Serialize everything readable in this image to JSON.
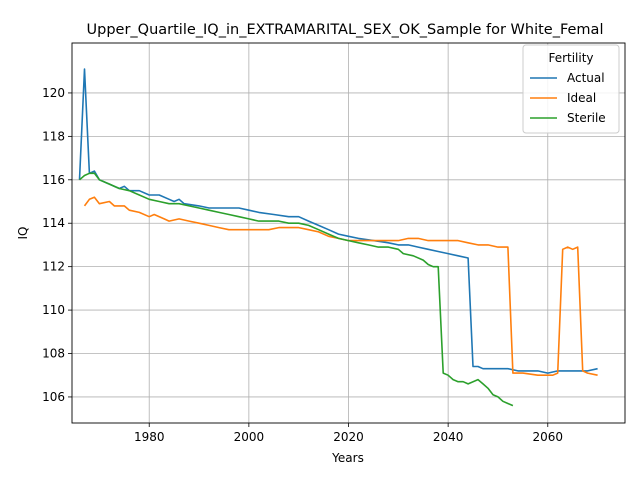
{
  "chart_data": {
    "type": "line",
    "title": "Upper_Quartile_IQ_in_EXTRAMARITAL_SEX_OK_Sample for White_Femal",
    "xlabel": "Years",
    "ylabel": "IQ",
    "xlim": [
      1964.5,
      2075.5
    ],
    "ylim": [
      104.8,
      122.3
    ],
    "xticks": [
      1980,
      2000,
      2020,
      2040,
      2060
    ],
    "yticks": [
      106,
      108,
      110,
      112,
      114,
      116,
      118,
      120
    ],
    "grid": true,
    "legend": {
      "title": "Fertility",
      "placement": "top-right"
    },
    "series": [
      {
        "name": "Actual",
        "color": "#1f77b4",
        "points": [
          [
            1966,
            116.0
          ],
          [
            1967,
            121.1
          ],
          [
            1968,
            116.3
          ],
          [
            1969,
            116.4
          ],
          [
            1970,
            116.0
          ],
          [
            1972,
            115.8
          ],
          [
            1974,
            115.6
          ],
          [
            1975,
            115.7
          ],
          [
            1976,
            115.5
          ],
          [
            1978,
            115.5
          ],
          [
            1980,
            115.3
          ],
          [
            1982,
            115.3
          ],
          [
            1984,
            115.1
          ],
          [
            1985,
            115.0
          ],
          [
            1986,
            115.1
          ],
          [
            1987,
            114.9
          ],
          [
            1990,
            114.8
          ],
          [
            1992,
            114.7
          ],
          [
            1995,
            114.7
          ],
          [
            1998,
            114.7
          ],
          [
            2000,
            114.6
          ],
          [
            2002,
            114.5
          ],
          [
            2005,
            114.4
          ],
          [
            2008,
            114.3
          ],
          [
            2010,
            114.3
          ],
          [
            2012,
            114.1
          ],
          [
            2014,
            113.9
          ],
          [
            2016,
            113.7
          ],
          [
            2018,
            113.5
          ],
          [
            2020,
            113.4
          ],
          [
            2022,
            113.3
          ],
          [
            2025,
            113.2
          ],
          [
            2028,
            113.1
          ],
          [
            2030,
            113.0
          ],
          [
            2032,
            113.0
          ],
          [
            2034,
            112.9
          ],
          [
            2036,
            112.8
          ],
          [
            2038,
            112.7
          ],
          [
            2040,
            112.6
          ],
          [
            2042,
            112.5
          ],
          [
            2044,
            112.4
          ],
          [
            2045,
            107.4
          ],
          [
            2046,
            107.4
          ],
          [
            2047,
            107.3
          ],
          [
            2048,
            107.3
          ],
          [
            2050,
            107.3
          ],
          [
            2052,
            107.3
          ],
          [
            2054,
            107.2
          ],
          [
            2056,
            107.2
          ],
          [
            2058,
            107.2
          ],
          [
            2060,
            107.1
          ],
          [
            2062,
            107.2
          ],
          [
            2064,
            107.2
          ],
          [
            2066,
            107.2
          ],
          [
            2068,
            107.2
          ],
          [
            2070,
            107.3
          ]
        ]
      },
      {
        "name": "Ideal",
        "color": "#ff7f0e",
        "points": [
          [
            1967,
            114.8
          ],
          [
            1968,
            115.1
          ],
          [
            1969,
            115.2
          ],
          [
            1970,
            114.9
          ],
          [
            1972,
            115.0
          ],
          [
            1973,
            114.8
          ],
          [
            1975,
            114.8
          ],
          [
            1976,
            114.6
          ],
          [
            1978,
            114.5
          ],
          [
            1980,
            114.3
          ],
          [
            1981,
            114.4
          ],
          [
            1983,
            114.2
          ],
          [
            1984,
            114.1
          ],
          [
            1986,
            114.2
          ],
          [
            1988,
            114.1
          ],
          [
            1990,
            114.0
          ],
          [
            1992,
            113.9
          ],
          [
            1994,
            113.8
          ],
          [
            1996,
            113.7
          ],
          [
            1998,
            113.7
          ],
          [
            2000,
            113.7
          ],
          [
            2002,
            113.7
          ],
          [
            2004,
            113.7
          ],
          [
            2006,
            113.8
          ],
          [
            2008,
            113.8
          ],
          [
            2010,
            113.8
          ],
          [
            2012,
            113.7
          ],
          [
            2014,
            113.6
          ],
          [
            2016,
            113.4
          ],
          [
            2018,
            113.3
          ],
          [
            2020,
            113.2
          ],
          [
            2022,
            113.2
          ],
          [
            2024,
            113.2
          ],
          [
            2026,
            113.2
          ],
          [
            2028,
            113.2
          ],
          [
            2030,
            113.2
          ],
          [
            2032,
            113.3
          ],
          [
            2034,
            113.3
          ],
          [
            2036,
            113.2
          ],
          [
            2038,
            113.2
          ],
          [
            2040,
            113.2
          ],
          [
            2042,
            113.2
          ],
          [
            2044,
            113.1
          ],
          [
            2046,
            113.0
          ],
          [
            2048,
            113.0
          ],
          [
            2050,
            112.9
          ],
          [
            2052,
            112.9
          ],
          [
            2053,
            107.1
          ],
          [
            2055,
            107.1
          ],
          [
            2058,
            107.0
          ],
          [
            2060,
            107.0
          ],
          [
            2061,
            107.0
          ],
          [
            2062,
            107.1
          ],
          [
            2063,
            112.8
          ],
          [
            2064,
            112.9
          ],
          [
            2065,
            112.8
          ],
          [
            2066,
            112.9
          ],
          [
            2067,
            107.2
          ],
          [
            2068,
            107.1
          ],
          [
            2070,
            107.0
          ]
        ]
      },
      {
        "name": "Sterile",
        "color": "#2ca02c",
        "points": [
          [
            1966,
            116.0
          ],
          [
            1967,
            116.2
          ],
          [
            1968,
            116.3
          ],
          [
            1969,
            116.3
          ],
          [
            1970,
            116.0
          ],
          [
            1972,
            115.8
          ],
          [
            1974,
            115.6
          ],
          [
            1976,
            115.5
          ],
          [
            1978,
            115.3
          ],
          [
            1980,
            115.1
          ],
          [
            1982,
            115.0
          ],
          [
            1984,
            114.9
          ],
          [
            1986,
            114.9
          ],
          [
            1988,
            114.8
          ],
          [
            1990,
            114.7
          ],
          [
            1992,
            114.6
          ],
          [
            1994,
            114.5
          ],
          [
            1996,
            114.4
          ],
          [
            1998,
            114.3
          ],
          [
            2000,
            114.2
          ],
          [
            2002,
            114.1
          ],
          [
            2004,
            114.1
          ],
          [
            2006,
            114.1
          ],
          [
            2008,
            114.0
          ],
          [
            2010,
            114.0
          ],
          [
            2012,
            113.9
          ],
          [
            2014,
            113.7
          ],
          [
            2016,
            113.5
          ],
          [
            2018,
            113.3
          ],
          [
            2020,
            113.2
          ],
          [
            2022,
            113.1
          ],
          [
            2024,
            113.0
          ],
          [
            2026,
            112.9
          ],
          [
            2028,
            112.9
          ],
          [
            2030,
            112.8
          ],
          [
            2031,
            112.6
          ],
          [
            2033,
            112.5
          ],
          [
            2035,
            112.3
          ],
          [
            2036,
            112.1
          ],
          [
            2037,
            112.0
          ],
          [
            2038,
            112.0
          ],
          [
            2039,
            107.1
          ],
          [
            2040,
            107.0
          ],
          [
            2041,
            106.8
          ],
          [
            2042,
            106.7
          ],
          [
            2043,
            106.7
          ],
          [
            2044,
            106.6
          ],
          [
            2046,
            106.8
          ],
          [
            2047,
            106.6
          ],
          [
            2048,
            106.4
          ],
          [
            2049,
            106.1
          ],
          [
            2050,
            106.0
          ],
          [
            2051,
            105.8
          ],
          [
            2052,
            105.7
          ],
          [
            2053,
            105.6
          ]
        ]
      }
    ]
  }
}
